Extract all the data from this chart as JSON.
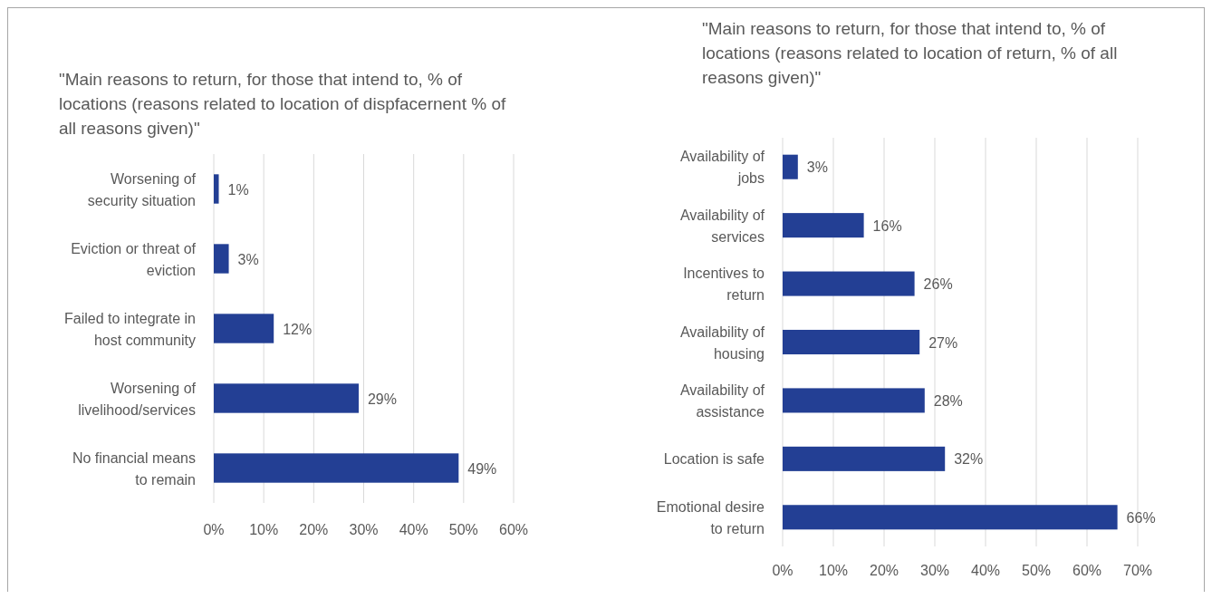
{
  "chart_data": [
    {
      "type": "bar",
      "orientation": "horizontal",
      "title": "\"Main reasons to return, for those that intend to, % of locations (reasons related to location of dispfacernent % of all reasons given)\"",
      "categories": [
        "Worsening of security situation",
        "Eviction or threat of eviction",
        "Failed to integrate in host community",
        "Worsening of livelihood/services",
        "No financial means to remain"
      ],
      "values": [
        1,
        3,
        12,
        29,
        49
      ],
      "value_labels": [
        "1%",
        "3%",
        "12%",
        "29%",
        "49%"
      ],
      "color": "#233f94",
      "xlim": [
        0,
        60
      ],
      "xticks": [
        {
          "value": 0,
          "label": "0%"
        },
        {
          "value": 10,
          "label": "10%"
        },
        {
          "value": 20,
          "label": "20%"
        },
        {
          "value": 30,
          "label": "30%"
        },
        {
          "value": 40,
          "label": "40%"
        },
        {
          "value": 50,
          "label": "50%"
        },
        {
          "value": 60,
          "label": "60%"
        }
      ],
      "grid": "x"
    },
    {
      "type": "bar",
      "orientation": "horizontal",
      "title": "\"Main reasons to return, for those that intend to, % of locations (reasons related to location of return, % of all reasons given)\"",
      "categories": [
        "Availability of jobs",
        "Availability of services",
        "Incentives to return",
        "Availability of housing",
        "Availability of assistance",
        "Location is safe",
        "Emotional desire to return"
      ],
      "values": [
        3,
        16,
        26,
        27,
        28,
        32,
        66
      ],
      "value_labels": [
        "3%",
        "16%",
        "26%",
        "27%",
        "28%",
        "32%",
        "66%"
      ],
      "color": "#233f94",
      "xlim": [
        0,
        70
      ],
      "xticks": [
        {
          "value": 0,
          "label": "0%"
        },
        {
          "value": 10,
          "label": "10%"
        },
        {
          "value": 20,
          "label": "20%"
        },
        {
          "value": 30,
          "label": "30%"
        },
        {
          "value": 40,
          "label": "40%"
        },
        {
          "value": 50,
          "label": "50%"
        },
        {
          "value": 60,
          "label": "60%"
        },
        {
          "value": 70,
          "label": "70%"
        }
      ],
      "grid": "x"
    }
  ]
}
